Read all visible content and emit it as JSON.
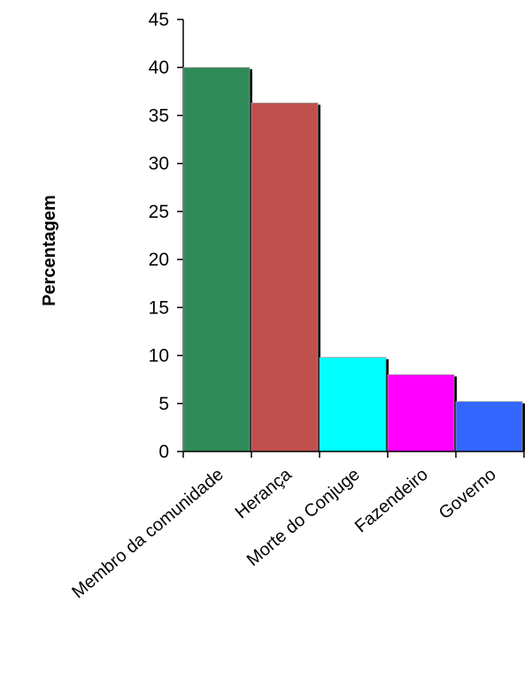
{
  "chart_data": {
    "type": "bar",
    "title": "",
    "xlabel": "",
    "ylabel": "Percentagem",
    "ylim": [
      0,
      45
    ],
    "yticks": [
      0,
      5,
      10,
      15,
      20,
      25,
      30,
      35,
      40,
      45
    ],
    "grid": false,
    "legend": "none",
    "categories": [
      "Membro da comunidade",
      "Herança",
      "Morte do Conjuge",
      "Fazendeiro",
      "Governo"
    ],
    "values": [
      40,
      36.3,
      9.8,
      8,
      5.2
    ],
    "colors": [
      "#2e8b57",
      "#c0504d",
      "#00ffff",
      "#ff00ff",
      "#3366ff"
    ]
  }
}
